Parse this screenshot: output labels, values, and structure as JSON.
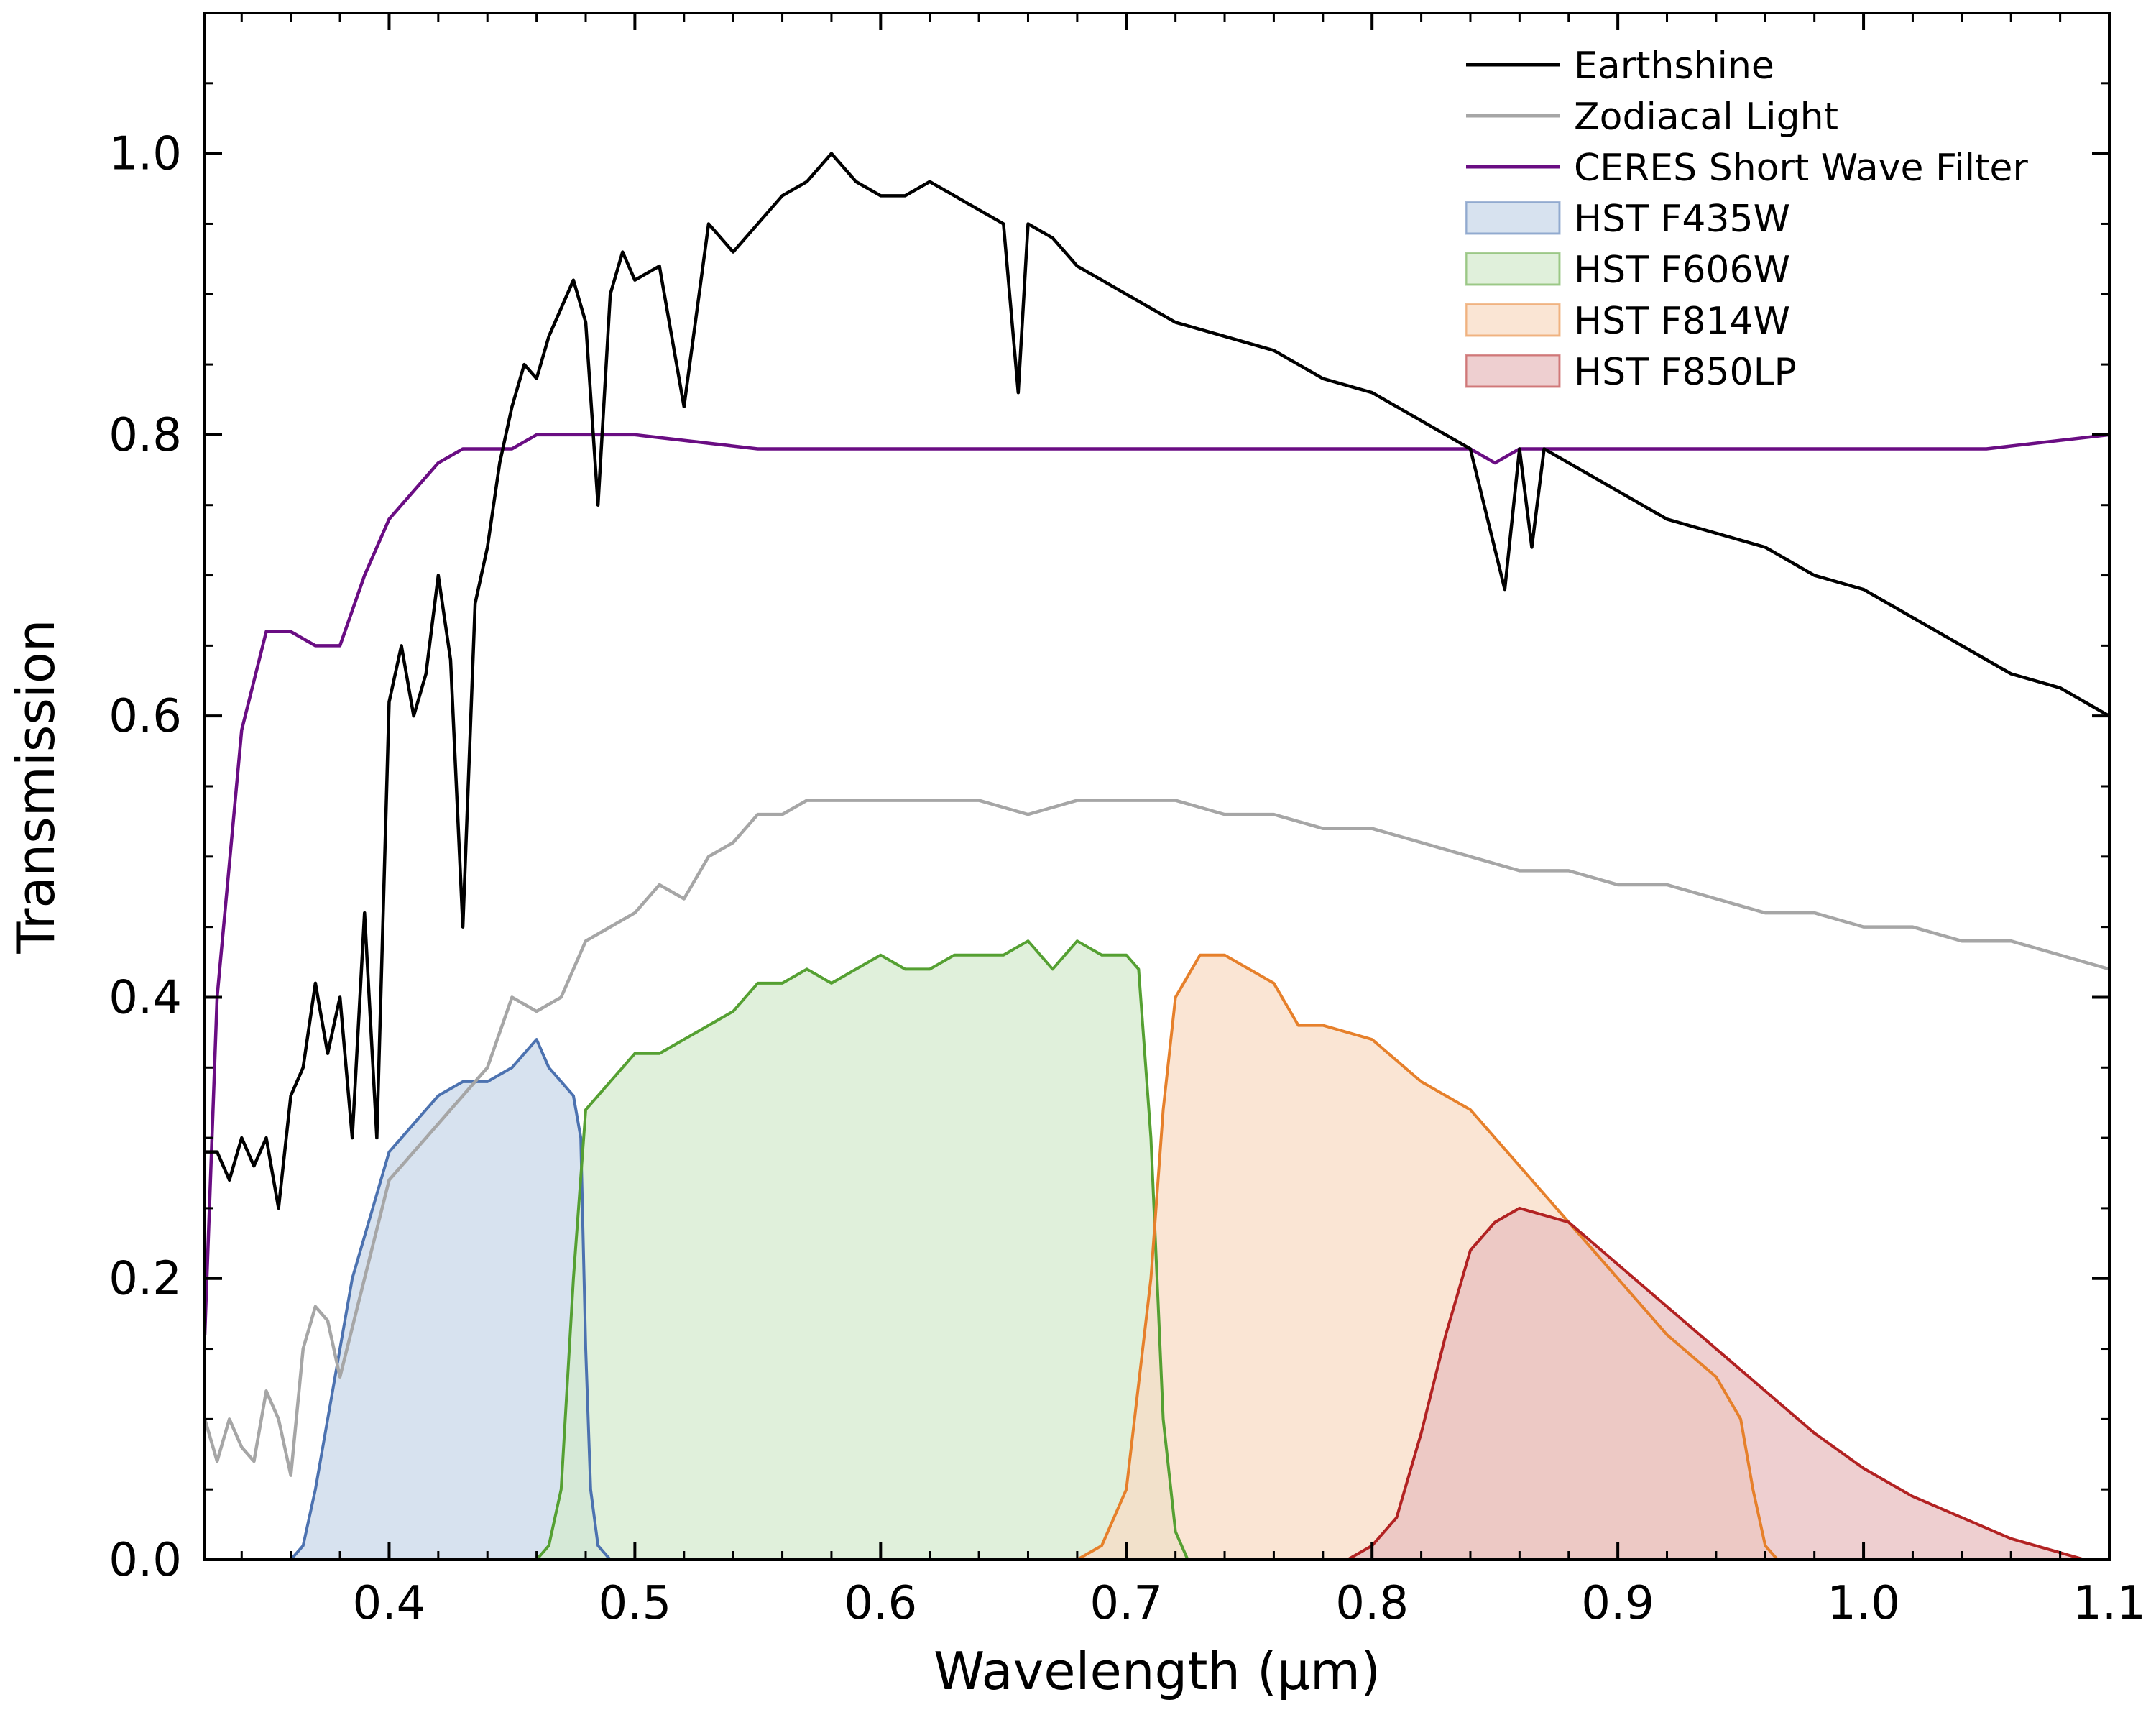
{
  "chart_data": {
    "type": "line",
    "title": "",
    "xlabel": "Wavelength (μm)",
    "ylabel": "Transmission",
    "xlim": [
      0.325,
      1.1
    ],
    "ylim": [
      0.0,
      1.1
    ],
    "xticks": [
      0.4,
      0.5,
      0.6,
      0.7,
      0.8,
      0.9,
      1.0,
      1.1
    ],
    "xtick_labels": [
      "0.4",
      "0.5",
      "0.6",
      "0.7",
      "0.8",
      "0.9",
      "1.0",
      "1.1"
    ],
    "yticks": [
      0.0,
      0.2,
      0.4,
      0.6,
      0.8,
      1.0
    ],
    "ytick_labels": [
      "0.0",
      "0.2",
      "0.4",
      "0.6",
      "0.8",
      "1.0"
    ],
    "grid": false,
    "legend_position": "top-right",
    "series": [
      {
        "name": "Earthshine",
        "kind": "line",
        "color": "#000000",
        "x": [
          0.325,
          0.33,
          0.335,
          0.34,
          0.345,
          0.35,
          0.355,
          0.36,
          0.365,
          0.37,
          0.375,
          0.38,
          0.385,
          0.39,
          0.395,
          0.4,
          0.405,
          0.41,
          0.415,
          0.42,
          0.425,
          0.43,
          0.435,
          0.44,
          0.445,
          0.45,
          0.455,
          0.46,
          0.465,
          0.47,
          0.475,
          0.48,
          0.485,
          0.49,
          0.495,
          0.5,
          0.51,
          0.52,
          0.53,
          0.54,
          0.55,
          0.56,
          0.57,
          0.58,
          0.59,
          0.6,
          0.61,
          0.62,
          0.63,
          0.64,
          0.65,
          0.656,
          0.66,
          0.67,
          0.68,
          0.69,
          0.7,
          0.72,
          0.74,
          0.76,
          0.78,
          0.8,
          0.82,
          0.84,
          0.854,
          0.86,
          0.865,
          0.87,
          0.88,
          0.9,
          0.92,
          0.94,
          0.96,
          0.98,
          1.0,
          1.02,
          1.04,
          1.06,
          1.08,
          1.1
        ],
        "y": [
          0.29,
          0.29,
          0.27,
          0.3,
          0.28,
          0.3,
          0.25,
          0.33,
          0.35,
          0.41,
          0.36,
          0.4,
          0.3,
          0.46,
          0.3,
          0.61,
          0.65,
          0.6,
          0.63,
          0.7,
          0.64,
          0.45,
          0.68,
          0.72,
          0.78,
          0.82,
          0.85,
          0.84,
          0.87,
          0.89,
          0.91,
          0.88,
          0.75,
          0.9,
          0.93,
          0.91,
          0.92,
          0.82,
          0.95,
          0.93,
          0.95,
          0.97,
          0.98,
          1.0,
          0.98,
          0.97,
          0.97,
          0.98,
          0.97,
          0.96,
          0.95,
          0.83,
          0.95,
          0.94,
          0.92,
          0.91,
          0.9,
          0.88,
          0.87,
          0.86,
          0.84,
          0.83,
          0.81,
          0.79,
          0.69,
          0.79,
          0.72,
          0.79,
          0.78,
          0.76,
          0.74,
          0.73,
          0.72,
          0.7,
          0.69,
          0.67,
          0.65,
          0.63,
          0.62,
          0.6
        ]
      },
      {
        "name": "Zodiacal Light",
        "kind": "line",
        "color": "#a6a6a6",
        "x": [
          0.325,
          0.33,
          0.335,
          0.34,
          0.345,
          0.35,
          0.355,
          0.36,
          0.365,
          0.37,
          0.375,
          0.38,
          0.39,
          0.4,
          0.41,
          0.42,
          0.43,
          0.44,
          0.45,
          0.46,
          0.47,
          0.48,
          0.49,
          0.5,
          0.51,
          0.52,
          0.53,
          0.54,
          0.55,
          0.56,
          0.57,
          0.58,
          0.59,
          0.6,
          0.61,
          0.62,
          0.64,
          0.66,
          0.68,
          0.7,
          0.72,
          0.74,
          0.76,
          0.78,
          0.8,
          0.82,
          0.84,
          0.86,
          0.88,
          0.9,
          0.92,
          0.94,
          0.96,
          0.98,
          1.0,
          1.02,
          1.04,
          1.06,
          1.08,
          1.1
        ],
        "y": [
          0.1,
          0.07,
          0.1,
          0.08,
          0.07,
          0.12,
          0.1,
          0.06,
          0.15,
          0.18,
          0.17,
          0.13,
          0.2,
          0.27,
          0.29,
          0.31,
          0.33,
          0.35,
          0.4,
          0.39,
          0.4,
          0.44,
          0.45,
          0.46,
          0.48,
          0.47,
          0.5,
          0.51,
          0.53,
          0.53,
          0.54,
          0.54,
          0.54,
          0.54,
          0.54,
          0.54,
          0.54,
          0.53,
          0.54,
          0.54,
          0.54,
          0.53,
          0.53,
          0.52,
          0.52,
          0.51,
          0.5,
          0.49,
          0.49,
          0.48,
          0.48,
          0.47,
          0.46,
          0.46,
          0.45,
          0.45,
          0.44,
          0.44,
          0.43,
          0.42
        ]
      },
      {
        "name": "CERES Short Wave Filter",
        "kind": "line",
        "color": "#6a0d83",
        "x": [
          0.325,
          0.33,
          0.34,
          0.35,
          0.36,
          0.37,
          0.38,
          0.39,
          0.4,
          0.41,
          0.42,
          0.43,
          0.44,
          0.45,
          0.46,
          0.48,
          0.5,
          0.55,
          0.6,
          0.65,
          0.7,
          0.75,
          0.8,
          0.84,
          0.85,
          0.86,
          0.9,
          0.95,
          1.0,
          1.05,
          1.1
        ],
        "y": [
          0.16,
          0.4,
          0.59,
          0.66,
          0.66,
          0.65,
          0.65,
          0.7,
          0.74,
          0.76,
          0.78,
          0.79,
          0.79,
          0.79,
          0.8,
          0.8,
          0.8,
          0.79,
          0.79,
          0.79,
          0.79,
          0.79,
          0.79,
          0.79,
          0.78,
          0.79,
          0.79,
          0.79,
          0.79,
          0.79,
          0.8
        ]
      },
      {
        "name": "HST F435W",
        "kind": "area",
        "color": "#4c72b0",
        "fill": "#c9d8ea",
        "x": [
          0.36,
          0.365,
          0.37,
          0.375,
          0.38,
          0.385,
          0.39,
          0.395,
          0.4,
          0.41,
          0.42,
          0.43,
          0.44,
          0.45,
          0.46,
          0.465,
          0.47,
          0.475,
          0.478,
          0.48,
          0.482,
          0.485,
          0.49
        ],
        "y": [
          0.0,
          0.01,
          0.05,
          0.1,
          0.15,
          0.2,
          0.23,
          0.26,
          0.29,
          0.31,
          0.33,
          0.34,
          0.34,
          0.35,
          0.37,
          0.35,
          0.34,
          0.33,
          0.3,
          0.15,
          0.05,
          0.01,
          0.0
        ]
      },
      {
        "name": "HST F606W",
        "kind": "area",
        "color": "#55a032",
        "fill": "#d6ebcf",
        "x": [
          0.46,
          0.465,
          0.47,
          0.475,
          0.48,
          0.49,
          0.5,
          0.51,
          0.52,
          0.53,
          0.54,
          0.55,
          0.56,
          0.57,
          0.58,
          0.59,
          0.6,
          0.61,
          0.62,
          0.63,
          0.64,
          0.65,
          0.66,
          0.67,
          0.68,
          0.69,
          0.7,
          0.705,
          0.71,
          0.715,
          0.72,
          0.725
        ],
        "y": [
          0.0,
          0.01,
          0.05,
          0.2,
          0.32,
          0.34,
          0.36,
          0.36,
          0.37,
          0.38,
          0.39,
          0.41,
          0.41,
          0.42,
          0.41,
          0.42,
          0.43,
          0.42,
          0.42,
          0.43,
          0.43,
          0.43,
          0.44,
          0.42,
          0.44,
          0.43,
          0.43,
          0.42,
          0.3,
          0.1,
          0.02,
          0.0
        ]
      },
      {
        "name": "HST F814W",
        "kind": "area",
        "color": "#e6802b",
        "fill": "#f8dcc6",
        "x": [
          0.68,
          0.69,
          0.7,
          0.71,
          0.715,
          0.72,
          0.73,
          0.74,
          0.75,
          0.76,
          0.77,
          0.78,
          0.8,
          0.82,
          0.84,
          0.86,
          0.88,
          0.9,
          0.92,
          0.94,
          0.95,
          0.955,
          0.96,
          0.965,
          0.97
        ],
        "y": [
          0.0,
          0.01,
          0.05,
          0.2,
          0.32,
          0.4,
          0.43,
          0.43,
          0.42,
          0.41,
          0.38,
          0.38,
          0.37,
          0.34,
          0.32,
          0.28,
          0.24,
          0.2,
          0.16,
          0.13,
          0.1,
          0.05,
          0.01,
          0.0,
          0.0
        ]
      },
      {
        "name": "HST F850LP",
        "kind": "area",
        "color": "#b22222",
        "fill": "#e8bfc0",
        "x": [
          0.79,
          0.8,
          0.81,
          0.82,
          0.83,
          0.84,
          0.85,
          0.86,
          0.87,
          0.88,
          0.9,
          0.92,
          0.94,
          0.96,
          0.98,
          1.0,
          1.02,
          1.04,
          1.06,
          1.08,
          1.09,
          1.1
        ],
        "y": [
          0.0,
          0.01,
          0.03,
          0.09,
          0.16,
          0.22,
          0.24,
          0.25,
          0.245,
          0.24,
          0.21,
          0.18,
          0.15,
          0.12,
          0.09,
          0.065,
          0.045,
          0.03,
          0.015,
          0.005,
          0.0,
          0.0
        ]
      }
    ]
  }
}
